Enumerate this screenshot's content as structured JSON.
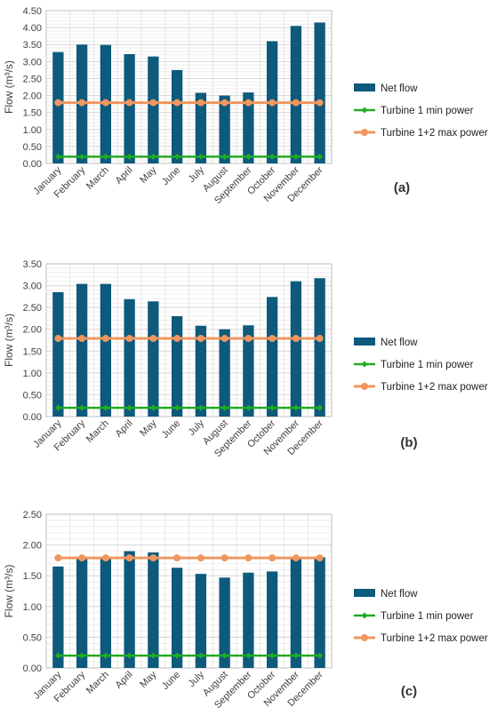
{
  "colors": {
    "net_flow": "#0d5a7d",
    "turbine1_min": "#22aa22",
    "turbine12_max": "#f0965e",
    "grid": "#d9d9d9",
    "axis": "#bfbfbf"
  },
  "legend_labels": {
    "net_flow": "Net flow",
    "turbine1_min": "Turbine 1 min power",
    "turbine12_max": "Turbine 1+2 max power"
  },
  "chart_data": [
    {
      "type": "bar",
      "panel_label": "(a)",
      "ylabel": "Flow (m³/s)",
      "ylim": [
        0,
        4.5
      ],
      "yticks": [
        "0.00",
        "0.50",
        "1.00",
        "1.50",
        "2.00",
        "2.50",
        "3.00",
        "3.50",
        "4.00",
        "4.50"
      ],
      "categories": [
        "January",
        "February",
        "March",
        "April",
        "May",
        "June",
        "July",
        "August",
        "September",
        "October",
        "November",
        "December"
      ],
      "series": [
        {
          "name": "Net flow",
          "kind": "bar",
          "values": [
            3.28,
            3.5,
            3.49,
            3.22,
            3.15,
            2.75,
            2.08,
            2.0,
            2.09,
            3.6,
            4.05,
            4.15
          ]
        },
        {
          "name": "Turbine 1 min power",
          "kind": "line",
          "values": [
            0.2,
            0.2,
            0.2,
            0.2,
            0.2,
            0.2,
            0.2,
            0.2,
            0.2,
            0.2,
            0.2,
            0.2
          ]
        },
        {
          "name": "Turbine 1+2 max power",
          "kind": "line",
          "values": [
            1.79,
            1.79,
            1.79,
            1.79,
            1.79,
            1.79,
            1.79,
            1.79,
            1.79,
            1.79,
            1.79,
            1.79
          ]
        }
      ],
      "grid": true,
      "legend_position": "right"
    },
    {
      "type": "bar",
      "panel_label": "(b)",
      "ylabel": "Flow (m³/s)",
      "ylim": [
        0,
        3.5
      ],
      "yticks": [
        "0.00",
        "0.50",
        "1.00",
        "1.50",
        "2.00",
        "2.50",
        "3.00",
        "3.50"
      ],
      "categories": [
        "January",
        "February",
        "March",
        "April",
        "May",
        "June",
        "July",
        "August",
        "September",
        "October",
        "November",
        "December"
      ],
      "series": [
        {
          "name": "Net flow",
          "kind": "bar",
          "values": [
            2.85,
            3.04,
            3.04,
            2.69,
            2.64,
            2.3,
            2.08,
            2.0,
            2.09,
            2.74,
            3.1,
            3.17
          ]
        },
        {
          "name": "Turbine 1 min power",
          "kind": "line",
          "values": [
            0.2,
            0.2,
            0.2,
            0.2,
            0.2,
            0.2,
            0.2,
            0.2,
            0.2,
            0.2,
            0.2,
            0.2
          ]
        },
        {
          "name": "Turbine 1+2 max power",
          "kind": "line",
          "values": [
            1.79,
            1.79,
            1.79,
            1.79,
            1.79,
            1.79,
            1.79,
            1.79,
            1.79,
            1.79,
            1.79,
            1.79
          ]
        }
      ],
      "grid": true,
      "legend_position": "right"
    },
    {
      "type": "bar",
      "panel_label": "(c)",
      "ylabel": "Flow (m³/s)",
      "ylim": [
        0,
        2.5
      ],
      "yticks": [
        "0.00",
        "0.50",
        "1.00",
        "1.50",
        "2.00",
        "2.50"
      ],
      "categories": [
        "January",
        "February",
        "March",
        "April",
        "May",
        "June",
        "July",
        "August",
        "September",
        "October",
        "November",
        "December"
      ],
      "series": [
        {
          "name": "Net flow",
          "kind": "bar",
          "values": [
            1.65,
            1.8,
            1.8,
            1.9,
            1.88,
            1.63,
            1.53,
            1.47,
            1.55,
            1.57,
            1.8,
            1.8
          ]
        },
        {
          "name": "Turbine 1 min power",
          "kind": "line",
          "values": [
            0.2,
            0.2,
            0.2,
            0.2,
            0.2,
            0.2,
            0.2,
            0.2,
            0.2,
            0.2,
            0.2,
            0.2
          ]
        },
        {
          "name": "Turbine 1+2 max power",
          "kind": "line",
          "values": [
            1.79,
            1.79,
            1.79,
            1.79,
            1.79,
            1.79,
            1.79,
            1.79,
            1.79,
            1.79,
            1.79,
            1.79
          ]
        }
      ],
      "grid": true,
      "legend_position": "right"
    }
  ]
}
